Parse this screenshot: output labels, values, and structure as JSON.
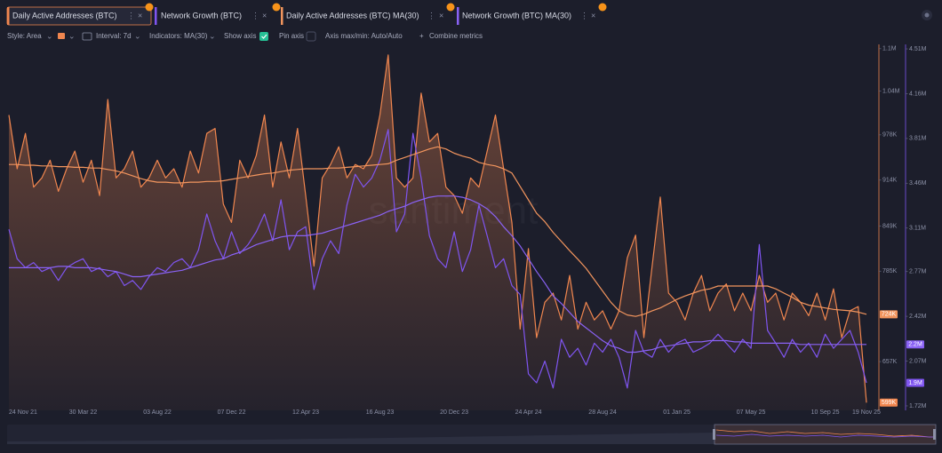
{
  "chart_data": {
    "type": "line",
    "watermark": "santiment",
    "categories": [
      "24 Nov 21",
      null,
      null,
      null,
      null,
      null,
      null,
      null,
      null,
      "30 Mar 22",
      null,
      null,
      null,
      null,
      null,
      null,
      null,
      null,
      "03 Aug 22",
      null,
      null,
      null,
      null,
      null,
      null,
      null,
      null,
      "07 Dec 22",
      null,
      null,
      null,
      null,
      null,
      null,
      null,
      null,
      "12 Apr 23",
      null,
      null,
      null,
      null,
      null,
      null,
      null,
      null,
      "16 Aug 23",
      null,
      null,
      null,
      null,
      null,
      null,
      null,
      null,
      "20 Dec 23",
      null,
      null,
      null,
      null,
      null,
      null,
      null,
      null,
      "24 Apr 24",
      null,
      null,
      null,
      null,
      null,
      null,
      null,
      null,
      "28 Aug 24",
      null,
      null,
      null,
      null,
      null,
      null,
      null,
      null,
      "01 Jan 25",
      null,
      null,
      null,
      null,
      null,
      null,
      null,
      null,
      "07 May 25",
      null,
      null,
      null,
      null,
      null,
      null,
      null,
      null,
      "10 Sep 25",
      null,
      null,
      null,
      null,
      "19 Nov 25"
    ],
    "ylim": [
      588000,
      1106000
    ],
    "yticks": [
      {
        "value": 1100000,
        "label": "1.1M"
      },
      {
        "value": 1040000,
        "label": "1.04M"
      },
      {
        "value": 978000,
        "label": "978K"
      },
      {
        "value": 914000,
        "label": "914K"
      },
      {
        "value": 849000,
        "label": "849K"
      },
      {
        "value": 785000,
        "label": "785K"
      },
      {
        "value": 657000,
        "label": "657K"
      }
    ],
    "y2lim": [
      1685000,
      4545000
    ],
    "y2ticks": [
      {
        "value": 4510000,
        "label": "4.51M"
      },
      {
        "value": 4160000,
        "label": "4.16M"
      },
      {
        "value": 3810000,
        "label": "3.81M"
      },
      {
        "value": 3460000,
        "label": "3.46M"
      },
      {
        "value": 3110000,
        "label": "3.11M"
      },
      {
        "value": 2770000,
        "label": "2.77M"
      },
      {
        "value": 2420000,
        "label": "2.42M"
      },
      {
        "value": 2070000,
        "label": "2.07M"
      },
      {
        "value": 1720000,
        "label": "1.72M"
      }
    ],
    "series": [
      {
        "name": "Daily Active Addresses (BTC)",
        "color": "#f0864f",
        "area": true,
        "last_label": "599K",
        "values": [
          1006000,
          930000,
          980000,
          904000,
          917000,
          942000,
          898000,
          930000,
          955000,
          911000,
          942000,
          892000,
          1028000,
          917000,
          930000,
          955000,
          904000,
          917000,
          942000,
          917000,
          930000,
          904000,
          955000,
          924000,
          980000,
          987000,
          880000,
          854000,
          942000,
          917000,
          949000,
          1006000,
          904000,
          968000,
          917000,
          987000,
          892000,
          792000,
          917000,
          936000,
          961000,
          917000,
          936000,
          930000,
          949000,
          1006000,
          1091000,
          917000,
          904000,
          917000,
          1037000,
          968000,
          980000,
          904000,
          892000,
          867000,
          917000,
          904000,
          955000,
          1006000,
          930000,
          854000,
          703000,
          817000,
          691000,
          741000,
          754000,
          716000,
          779000,
          703000,
          741000,
          716000,
          729000,
          703000,
          729000,
          804000,
          836000,
          691000,
          792000,
          890000,
          754000,
          741000,
          716000,
          754000,
          779000,
          729000,
          754000,
          767000,
          729000,
          754000,
          729000,
          779000,
          741000,
          754000,
          716000,
          754000,
          741000,
          722000,
          754000,
          716000,
          760000,
          691000,
          729000,
          735000,
          599000
        ]
      },
      {
        "name": "Network Growth (BTC)",
        "color": "#7f55f0",
        "axis": "y2",
        "last_label": "1.9M",
        "values": [
          3100000,
          2870000,
          2800000,
          2840000,
          2770000,
          2800000,
          2700000,
          2800000,
          2840000,
          2870000,
          2770000,
          2800000,
          2730000,
          2770000,
          2660000,
          2700000,
          2630000,
          2730000,
          2800000,
          2770000,
          2840000,
          2870000,
          2800000,
          2940000,
          3220000,
          3010000,
          2870000,
          3080000,
          2910000,
          2980000,
          3080000,
          3220000,
          3010000,
          3330000,
          2940000,
          3080000,
          3120000,
          2630000,
          2870000,
          3010000,
          2910000,
          3290000,
          3530000,
          3430000,
          3500000,
          3640000,
          3880000,
          3080000,
          3220000,
          3850000,
          3500000,
          3050000,
          2870000,
          2800000,
          3080000,
          2770000,
          2940000,
          3290000,
          3050000,
          2800000,
          2870000,
          2660000,
          2590000,
          1970000,
          1900000,
          2070000,
          1860000,
          2240000,
          2100000,
          2170000,
          2040000,
          2210000,
          2140000,
          2240000,
          2100000,
          1860000,
          2310000,
          2140000,
          2100000,
          2240000,
          2140000,
          2210000,
          2240000,
          2140000,
          2170000,
          2210000,
          2280000,
          2210000,
          2140000,
          2240000,
          2170000,
          2980000,
          2310000,
          2210000,
          2100000,
          2240000,
          2140000,
          2210000,
          2100000,
          2280000,
          2170000,
          2240000,
          2310000,
          2140000,
          1900000
        ]
      },
      {
        "name": "Daily Active Addresses (BTC) MA(30)",
        "color": "#f2955e",
        "last_label": "724K",
        "values": [
          936000,
          936000,
          935000,
          935000,
          934000,
          934000,
          933000,
          933000,
          932000,
          932000,
          931000,
          931000,
          929000,
          927000,
          924000,
          920000,
          916000,
          913000,
          911000,
          911000,
          910000,
          910000,
          911000,
          911000,
          912000,
          912000,
          913000,
          915000,
          917000,
          919000,
          921000,
          923000,
          924000,
          926000,
          928000,
          929000,
          930000,
          930000,
          930000,
          931000,
          931000,
          932000,
          933000,
          934000,
          935000,
          936000,
          937000,
          942000,
          946000,
          950000,
          954000,
          958000,
          961000,
          958000,
          952000,
          948000,
          945000,
          939000,
          936000,
          934000,
          930000,
          924000,
          905000,
          886000,
          867000,
          855000,
          840000,
          827000,
          814000,
          802000,
          789000,
          773000,
          757000,
          741000,
          729000,
          723000,
          721000,
          724000,
          729000,
          733000,
          739000,
          745000,
          750000,
          754000,
          758000,
          760000,
          764000,
          764000,
          764000,
          764000,
          764000,
          764000,
          764000,
          760000,
          754000,
          748000,
          741000,
          737000,
          735000,
          733000,
          731000,
          730000,
          729000,
          727000,
          724000
        ]
      },
      {
        "name": "Network Growth (BTC) MA(30)",
        "color": "#8a62f5",
        "axis": "y2",
        "last_label": "2.2M",
        "values": [
          2800000,
          2800000,
          2800000,
          2800000,
          2800000,
          2800000,
          2810000,
          2810000,
          2800000,
          2800000,
          2800000,
          2790000,
          2780000,
          2770000,
          2750000,
          2730000,
          2730000,
          2740000,
          2750000,
          2760000,
          2770000,
          2780000,
          2800000,
          2820000,
          2840000,
          2860000,
          2870000,
          2900000,
          2920000,
          2950000,
          2980000,
          3000000,
          3020000,
          3040000,
          3050000,
          3050000,
          3050000,
          3060000,
          3070000,
          3090000,
          3110000,
          3130000,
          3150000,
          3170000,
          3190000,
          3210000,
          3240000,
          3260000,
          3280000,
          3310000,
          3330000,
          3350000,
          3360000,
          3360000,
          3360000,
          3350000,
          3330000,
          3300000,
          3260000,
          3200000,
          3120000,
          3050000,
          2970000,
          2870000,
          2770000,
          2680000,
          2580000,
          2520000,
          2450000,
          2380000,
          2330000,
          2280000,
          2230000,
          2190000,
          2170000,
          2140000,
          2140000,
          2150000,
          2160000,
          2180000,
          2190000,
          2200000,
          2210000,
          2220000,
          2220000,
          2230000,
          2230000,
          2230000,
          2220000,
          2220000,
          2210000,
          2210000,
          2210000,
          2210000,
          2210000,
          2210000,
          2200000,
          2200000,
          2200000,
          2200000,
          2200000,
          2200000,
          2200000,
          2200000,
          2200000
        ]
      }
    ]
  }
}
